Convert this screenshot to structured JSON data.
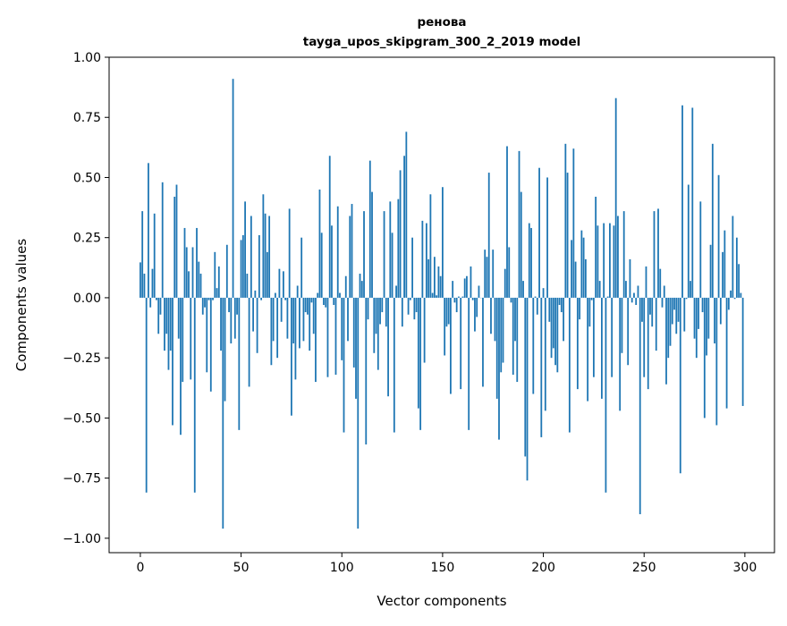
{
  "chart_data": {
    "type": "bar",
    "title": [
      "ренова",
      "tayga_upos_skipgram_300_2_2019 model"
    ],
    "xlabel": "Vector components",
    "ylabel": "Components values",
    "xlim": [
      -15.5,
      314.7
    ],
    "ylim": [
      -1.06,
      1.0
    ],
    "grid": false,
    "bar_color": "#1f77b4",
    "xticks": [
      0,
      50,
      100,
      150,
      200,
      250,
      300
    ],
    "xtick_labels": [
      "0",
      "50",
      "100",
      "150",
      "200",
      "250",
      "300"
    ],
    "yticks": [
      -1.0,
      -0.75,
      -0.5,
      -0.25,
      0.0,
      0.25,
      0.5,
      0.75,
      1.0
    ],
    "ytick_labels": [
      "−1.00",
      "−0.75",
      "−0.50",
      "−0.25",
      "0.00",
      "0.25",
      "0.50",
      "0.75",
      "1.00"
    ],
    "values": [
      0.147,
      0.36,
      0.1,
      -0.81,
      0.56,
      -0.04,
      0.12,
      0.35,
      -0.01,
      -0.15,
      -0.07,
      0.48,
      -0.22,
      -0.15,
      -0.3,
      -0.22,
      -0.53,
      0.42,
      0.47,
      -0.17,
      -0.57,
      -0.35,
      0.29,
      0.21,
      0.11,
      -0.34,
      0.21,
      -0.81,
      0.29,
      0.15,
      0.1,
      -0.07,
      -0.04,
      -0.31,
      -0.01,
      -0.39,
      -0.01,
      0.19,
      0.04,
      0.13,
      -0.22,
      -0.96,
      -0.43,
      0.22,
      -0.06,
      -0.19,
      0.91,
      -0.17,
      -0.07,
      -0.55,
      0.24,
      0.26,
      0.4,
      0.1,
      -0.37,
      0.34,
      -0.14,
      0.03,
      -0.23,
      0.26,
      -0.01,
      0.43,
      0.35,
      0.19,
      0.34,
      -0.28,
      -0.18,
      0.02,
      -0.25,
      0.12,
      -0.1,
      0.11,
      -0.01,
      -0.17,
      0.37,
      -0.49,
      -0.19,
      -0.34,
      0.05,
      -0.21,
      0.25,
      -0.18,
      -0.06,
      -0.07,
      -0.22,
      -0.02,
      -0.15,
      -0.35,
      0.02,
      0.45,
      0.27,
      -0.03,
      -0.04,
      -0.33,
      0.59,
      0.3,
      -0.03,
      -0.32,
      0.38,
      0.02,
      -0.26,
      -0.56,
      0.09,
      -0.18,
      0.34,
      0.39,
      -0.29,
      -0.42,
      -0.96,
      0.1,
      0.07,
      0.36,
      -0.61,
      -0.09,
      0.57,
      0.44,
      -0.23,
      -0.15,
      -0.3,
      -0.11,
      -0.06,
      0.36,
      -0.12,
      -0.41,
      0.4,
      0.27,
      -0.56,
      0.05,
      0.41,
      0.53,
      -0.12,
      0.59,
      0.69,
      -0.07,
      -0.01,
      0.25,
      -0.09,
      -0.06,
      -0.46,
      -0.55,
      0.32,
      -0.27,
      0.31,
      0.16,
      0.43,
      0.02,
      0.17,
      0.01,
      0.13,
      0.09,
      0.46,
      -0.24,
      -0.12,
      -0.11,
      -0.4,
      0.07,
      -0.02,
      -0.06,
      0.005,
      -0.38,
      0.005,
      0.08,
      0.09,
      -0.55,
      0.13,
      -0.01,
      -0.14,
      -0.08,
      0.05,
      0.0,
      -0.37,
      0.2,
      0.17,
      0.52,
      -0.15,
      0.2,
      -0.18,
      -0.42,
      -0.59,
      -0.31,
      -0.27,
      0.12,
      0.63,
      0.21,
      -0.02,
      -0.32,
      -0.18,
      -0.35,
      0.61,
      0.44,
      0.07,
      -0.66,
      -0.76,
      0.31,
      0.29,
      -0.4,
      0.005,
      -0.07,
      0.54,
      -0.58,
      0.04,
      -0.47,
      0.5,
      -0.1,
      -0.25,
      -0.21,
      -0.28,
      -0.31,
      -0.03,
      -0.06,
      -0.18,
      0.64,
      0.52,
      -0.56,
      0.24,
      0.62,
      0.15,
      -0.38,
      -0.09,
      0.28,
      0.25,
      0.16,
      -0.43,
      -0.12,
      -0.01,
      -0.33,
      0.42,
      0.3,
      0.07,
      -0.42,
      0.31,
      -0.81,
      0.005,
      0.31,
      -0.33,
      0.3,
      0.83,
      0.34,
      -0.47,
      -0.23,
      0.36,
      0.07,
      -0.28,
      0.16,
      -0.02,
      0.02,
      -0.03,
      0.05,
      -0.9,
      -0.1,
      -0.33,
      0.13,
      -0.38,
      -0.07,
      -0.12,
      0.36,
      -0.22,
      0.37,
      0.12,
      -0.04,
      0.05,
      -0.36,
      -0.25,
      -0.2,
      -0.11,
      -0.05,
      -0.15,
      -0.1,
      -0.73,
      0.8,
      -0.14,
      -0.005,
      0.47,
      0.07,
      0.79,
      -0.17,
      -0.25,
      -0.13,
      0.4,
      -0.06,
      -0.5,
      -0.24,
      -0.17,
      0.22,
      0.64,
      -0.19,
      -0.53,
      0.51,
      -0.11,
      0.19,
      0.28,
      -0.46,
      -0.05,
      0.03,
      0.34,
      -0.005,
      0.25,
      0.14,
      0.02,
      -0.45
    ]
  }
}
